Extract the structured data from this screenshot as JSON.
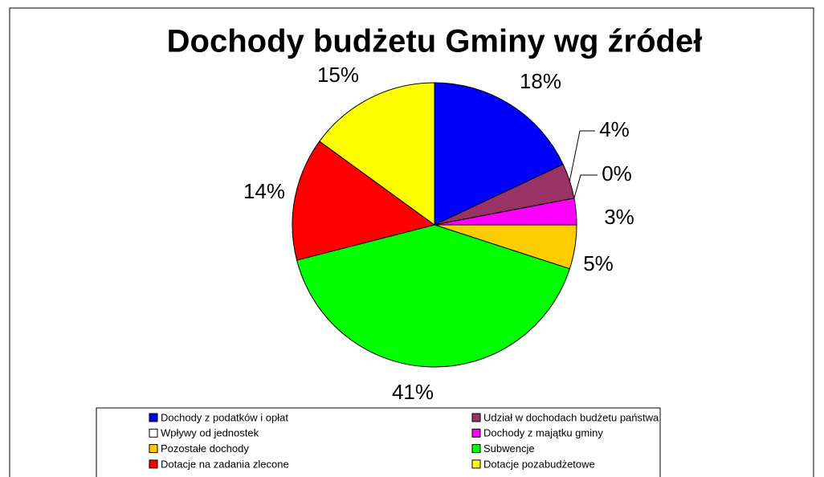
{
  "chart_data": {
    "type": "pie",
    "title": "Dochody budżetu Gminy wg źródeł",
    "categories": [
      "Dochody z podatków i opłat",
      "Udział w dochodach budżetu państwa",
      "Wpływy od jednostek",
      "Dochody z majątku gminy",
      "Pozostałe dochody",
      "Subwencje",
      "Dotacje na zadania zlecone",
      "Dotacje pozabudżetowe"
    ],
    "values": [
      18,
      4,
      0,
      3,
      5,
      41,
      14,
      15
    ],
    "value_labels": [
      "18%",
      "4%",
      "0%",
      "3%",
      "5%",
      "41%",
      "14%",
      "15%"
    ],
    "colors": [
      "#0000ff",
      "#993366",
      "#ffffff",
      "#ff00ff",
      "#ffcc00",
      "#00ff00",
      "#ff0000",
      "#ffff00"
    ],
    "legend": "bottom"
  }
}
